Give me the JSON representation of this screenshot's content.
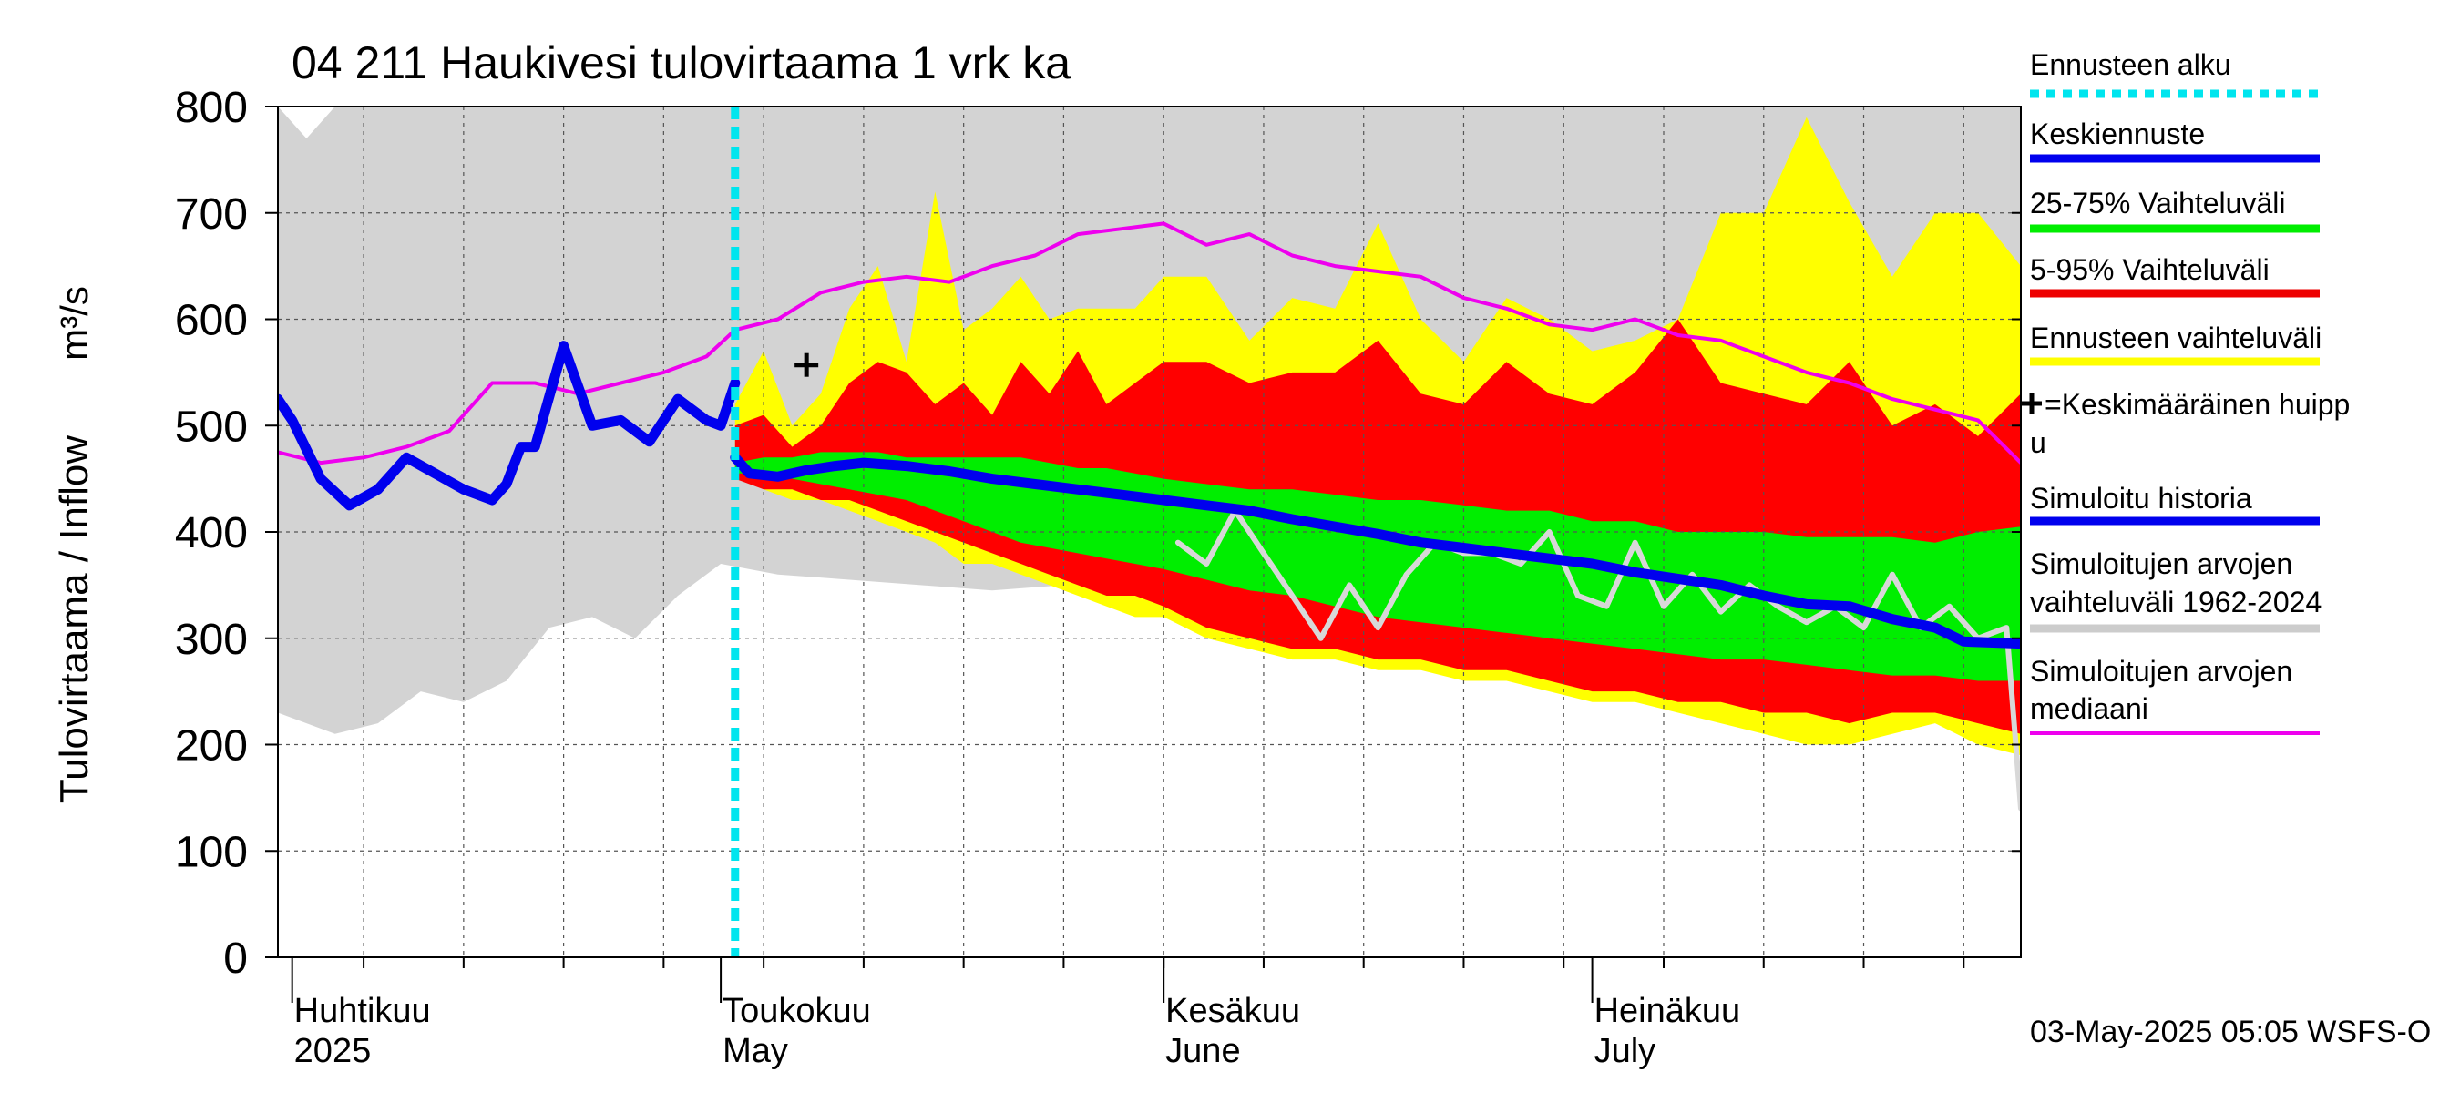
{
  "title": "04 211 Haukivesi tulovirtaama 1 vrk ka",
  "y_axis_label_left": "Tulovirtaama / Inflow",
  "y_axis_unit": "m³/s",
  "month_labels": [
    {
      "fi": "Huhtikuu",
      "en": "2025",
      "date": "2025-04-01"
    },
    {
      "fi": "Toukokuu",
      "en": "May",
      "date": "2025-05-01"
    },
    {
      "fi": "Kesäkuu",
      "en": "June",
      "date": "2025-06-01"
    },
    {
      "fi": "Heinäkuu",
      "en": "July",
      "date": "2025-07-01"
    }
  ],
  "timestamp": "03-May-2025 05:05 WSFS-O",
  "legend": [
    {
      "label": "Ennusteen alku",
      "color": "#00e5ee",
      "style": "dotted"
    },
    {
      "label": "Keskiennuste",
      "color": "#0000ee",
      "style": "line"
    },
    {
      "label": "25-75% Vaihteluväli",
      "color": "#00ee00",
      "style": "line"
    },
    {
      "label": "5-95% Vaihteluväli",
      "color": "#ee0000",
      "style": "line"
    },
    {
      "label": "Ennusteen vaihteluväli",
      "color": "#ffff00",
      "style": "line"
    },
    {
      "label": "✚=Keskimääräinen huipp",
      "label2": "u",
      "color": "#000000",
      "style": "none"
    },
    {
      "label": "Simuloitu historia",
      "color": "#0000ee",
      "style": "line"
    },
    {
      "label": "Simuloitujen arvojen",
      "label2": "vaihteluväli 1962-2024",
      "color": "#cccccc",
      "style": "line"
    },
    {
      "label": "Simuloitujen arvojen",
      "label2": "mediaani",
      "color": "#ee00ee",
      "style": "thin"
    }
  ],
  "chart_data": {
    "type": "line",
    "title": "04 211 Haukivesi tulovirtaama 1 vrk ka",
    "ylabel": "Tulovirtaama / Inflow m³/s",
    "ylim": [
      0,
      800
    ],
    "yticks": [
      0,
      100,
      200,
      300,
      400,
      500,
      600,
      700,
      800
    ],
    "xlim": [
      "2025-03-31",
      "2025-07-31"
    ],
    "x_major_ticks": [
      "2025-04-01",
      "2025-05-01",
      "2025-06-01",
      "2025-07-01"
    ],
    "forecast_start": "2025-05-02",
    "mean_peak": {
      "date": "2025-05-07",
      "value": 557
    },
    "grid": true,
    "colors": {
      "history_range": "#d3d3d3",
      "forecast_range": "#ffff00",
      "p5_95": "#ff0000",
      "p25_75": "#00ee00",
      "mean_forecast": "#0000ee",
      "simulated_history": "#0000ee",
      "median": "#ee00ee",
      "gray_line": "#d8d8d8",
      "forecast_start": "#00e5ee"
    },
    "series": [
      {
        "name": "Simuloitujen arvojen vaihteluväli 1962-2024",
        "kind": "band",
        "dates": [
          "2025-03-31",
          "2025-04-02",
          "2025-04-04",
          "2025-04-07",
          "2025-04-10",
          "2025-04-13",
          "2025-04-16",
          "2025-04-19",
          "2025-04-22",
          "2025-04-25",
          "2025-04-28",
          "2025-05-01",
          "2025-05-05",
          "2025-05-10",
          "2025-05-15",
          "2025-05-20",
          "2025-05-25",
          "2025-05-31",
          "2025-06-05",
          "2025-06-10",
          "2025-06-15",
          "2025-06-20",
          "2025-06-25",
          "2025-06-30",
          "2025-07-05",
          "2025-07-10",
          "2025-07-15",
          "2025-07-20",
          "2025-07-25",
          "2025-07-31"
        ],
        "upper": [
          800,
          770,
          800,
          800,
          800,
          800,
          800,
          800,
          800,
          800,
          800,
          800,
          800,
          800,
          800,
          800,
          800,
          800,
          800,
          800,
          800,
          800,
          800,
          800,
          800,
          800,
          800,
          800,
          800,
          800
        ],
        "lower": [
          230,
          220,
          210,
          220,
          250,
          240,
          260,
          310,
          320,
          300,
          340,
          370,
          360,
          355,
          350,
          345,
          350,
          340,
          330,
          320,
          310,
          300,
          290,
          280,
          270,
          260,
          250,
          240,
          225,
          210
        ]
      },
      {
        "name": "Ennusteen vaihteluväli",
        "kind": "band",
        "dates": [
          "2025-05-02",
          "2025-05-04",
          "2025-05-06",
          "2025-05-08",
          "2025-05-10",
          "2025-05-12",
          "2025-05-14",
          "2025-05-16",
          "2025-05-18",
          "2025-05-20",
          "2025-05-22",
          "2025-05-24",
          "2025-05-26",
          "2025-05-28",
          "2025-05-30",
          "2025-06-01",
          "2025-06-04",
          "2025-06-07",
          "2025-06-10",
          "2025-06-13",
          "2025-06-16",
          "2025-06-19",
          "2025-06-22",
          "2025-06-25",
          "2025-06-28",
          "2025-07-01",
          "2025-07-04",
          "2025-07-07",
          "2025-07-10",
          "2025-07-13",
          "2025-07-16",
          "2025-07-19",
          "2025-07-22",
          "2025-07-25",
          "2025-07-28",
          "2025-07-31"
        ],
        "upper": [
          520,
          570,
          500,
          530,
          610,
          650,
          560,
          720,
          590,
          610,
          640,
          600,
          610,
          610,
          610,
          640,
          640,
          580,
          620,
          610,
          690,
          600,
          560,
          620,
          600,
          570,
          580,
          600,
          700,
          700,
          790,
          710,
          640,
          700,
          700,
          650
        ],
        "lower": [
          460,
          440,
          430,
          430,
          420,
          410,
          400,
          390,
          370,
          370,
          360,
          350,
          340,
          330,
          320,
          320,
          300,
          290,
          280,
          280,
          270,
          270,
          260,
          260,
          250,
          240,
          240,
          230,
          220,
          210,
          200,
          200,
          210,
          220,
          200,
          190
        ]
      },
      {
        "name": "5-95% Vaihteluväli",
        "kind": "band",
        "dates": [
          "2025-05-02",
          "2025-05-04",
          "2025-05-06",
          "2025-05-08",
          "2025-05-10",
          "2025-05-12",
          "2025-05-14",
          "2025-05-16",
          "2025-05-18",
          "2025-05-20",
          "2025-05-22",
          "2025-05-24",
          "2025-05-26",
          "2025-05-28",
          "2025-05-30",
          "2025-06-01",
          "2025-06-04",
          "2025-06-07",
          "2025-06-10",
          "2025-06-13",
          "2025-06-16",
          "2025-06-19",
          "2025-06-22",
          "2025-06-25",
          "2025-06-28",
          "2025-07-01",
          "2025-07-04",
          "2025-07-07",
          "2025-07-10",
          "2025-07-13",
          "2025-07-16",
          "2025-07-19",
          "2025-07-22",
          "2025-07-25",
          "2025-07-28",
          "2025-07-31"
        ],
        "upper": [
          500,
          510,
          480,
          500,
          540,
          560,
          550,
          520,
          540,
          510,
          560,
          530,
          570,
          520,
          540,
          560,
          560,
          540,
          550,
          550,
          580,
          530,
          520,
          560,
          530,
          520,
          550,
          600,
          540,
          530,
          520,
          560,
          500,
          520,
          490,
          530
        ],
        "lower": [
          450,
          440,
          440,
          430,
          430,
          420,
          410,
          400,
          390,
          380,
          370,
          360,
          350,
          340,
          340,
          330,
          310,
          300,
          290,
          290,
          280,
          280,
          270,
          270,
          260,
          250,
          250,
          240,
          240,
          230,
          230,
          220,
          230,
          230,
          220,
          210
        ]
      },
      {
        "name": "25-75% Vaihteluväli",
        "kind": "band",
        "dates": [
          "2025-05-02",
          "2025-05-04",
          "2025-05-06",
          "2025-05-08",
          "2025-05-10",
          "2025-05-12",
          "2025-05-14",
          "2025-05-16",
          "2025-05-18",
          "2025-05-20",
          "2025-05-22",
          "2025-05-24",
          "2025-05-26",
          "2025-05-28",
          "2025-05-30",
          "2025-06-01",
          "2025-06-04",
          "2025-06-07",
          "2025-06-10",
          "2025-06-13",
          "2025-06-16",
          "2025-06-19",
          "2025-06-22",
          "2025-06-25",
          "2025-06-28",
          "2025-07-01",
          "2025-07-04",
          "2025-07-07",
          "2025-07-10",
          "2025-07-13",
          "2025-07-16",
          "2025-07-19",
          "2025-07-22",
          "2025-07-25",
          "2025-07-28",
          "2025-07-31"
        ],
        "upper": [
          465,
          470,
          470,
          475,
          475,
          475,
          470,
          470,
          470,
          470,
          470,
          465,
          460,
          460,
          455,
          450,
          445,
          440,
          440,
          435,
          430,
          430,
          425,
          420,
          420,
          410,
          410,
          400,
          400,
          400,
          395,
          395,
          395,
          390,
          400,
          405
        ],
        "lower": [
          455,
          455,
          450,
          445,
          440,
          435,
          430,
          420,
          410,
          400,
          390,
          385,
          380,
          375,
          370,
          365,
          355,
          345,
          340,
          330,
          320,
          315,
          310,
          305,
          300,
          295,
          290,
          285,
          280,
          280,
          275,
          270,
          265,
          265,
          260,
          260
        ]
      },
      {
        "name": "Simuloitujen arvojen mediaani",
        "kind": "line",
        "dates": [
          "2025-03-31",
          "2025-04-03",
          "2025-04-06",
          "2025-04-09",
          "2025-04-12",
          "2025-04-15",
          "2025-04-18",
          "2025-04-21",
          "2025-04-24",
          "2025-04-27",
          "2025-04-30",
          "2025-05-02",
          "2025-05-05",
          "2025-05-08",
          "2025-05-11",
          "2025-05-14",
          "2025-05-17",
          "2025-05-20",
          "2025-05-23",
          "2025-05-26",
          "2025-05-29",
          "2025-06-01",
          "2025-06-04",
          "2025-06-07",
          "2025-06-10",
          "2025-06-13",
          "2025-06-16",
          "2025-06-19",
          "2025-06-22",
          "2025-06-25",
          "2025-06-28",
          "2025-07-01",
          "2025-07-04",
          "2025-07-07",
          "2025-07-10",
          "2025-07-13",
          "2025-07-16",
          "2025-07-19",
          "2025-07-22",
          "2025-07-25",
          "2025-07-28",
          "2025-07-31"
        ],
        "values": [
          475,
          465,
          470,
          480,
          495,
          540,
          540,
          530,
          540,
          550,
          565,
          590,
          600,
          625,
          635,
          640,
          635,
          650,
          660,
          680,
          685,
          690,
          670,
          680,
          660,
          650,
          645,
          640,
          620,
          610,
          595,
          590,
          600,
          585,
          580,
          565,
          550,
          540,
          525,
          515,
          505,
          465
        ]
      },
      {
        "name": "Simuloitu historia",
        "kind": "line",
        "dates": [
          "2025-03-31",
          "2025-04-01",
          "2025-04-03",
          "2025-04-05",
          "2025-04-07",
          "2025-04-09",
          "2025-04-11",
          "2025-04-13",
          "2025-04-15",
          "2025-04-16",
          "2025-04-17",
          "2025-04-18",
          "2025-04-20",
          "2025-04-22",
          "2025-04-24",
          "2025-04-26",
          "2025-04-28",
          "2025-04-30",
          "2025-05-01",
          "2025-05-02"
        ],
        "values": [
          525,
          505,
          450,
          425,
          440,
          470,
          455,
          440,
          430,
          445,
          480,
          480,
          575,
          500,
          505,
          485,
          525,
          505,
          500,
          540
        ]
      },
      {
        "name": "Keskiennuste",
        "kind": "line",
        "dates": [
          "2025-05-02",
          "2025-05-03",
          "2025-05-05",
          "2025-05-07",
          "2025-05-09",
          "2025-05-11",
          "2025-05-14",
          "2025-05-17",
          "2025-05-20",
          "2025-05-23",
          "2025-05-26",
          "2025-05-29",
          "2025-06-01",
          "2025-06-04",
          "2025-06-07",
          "2025-06-10",
          "2025-06-13",
          "2025-06-16",
          "2025-06-19",
          "2025-06-22",
          "2025-06-25",
          "2025-06-28",
          "2025-07-01",
          "2025-07-04",
          "2025-07-07",
          "2025-07-10",
          "2025-07-13",
          "2025-07-16",
          "2025-07-19",
          "2025-07-22",
          "2025-07-25",
          "2025-07-27",
          "2025-07-31"
        ],
        "values": [
          470,
          455,
          452,
          458,
          462,
          465,
          462,
          457,
          450,
          445,
          440,
          435,
          430,
          425,
          420,
          412,
          405,
          398,
          390,
          385,
          380,
          375,
          370,
          362,
          356,
          350,
          340,
          332,
          330,
          318,
          310,
          297,
          295
        ]
      },
      {
        "name": "gray",
        "kind": "line",
        "dates": [
          "2025-06-02",
          "2025-06-04",
          "2025-06-06",
          "2025-06-08",
          "2025-06-10",
          "2025-06-12",
          "2025-06-14",
          "2025-06-16",
          "2025-06-18",
          "2025-06-20",
          "2025-06-22",
          "2025-06-24",
          "2025-06-26",
          "2025-06-28",
          "2025-06-30",
          "2025-07-02",
          "2025-07-04",
          "2025-07-06",
          "2025-07-08",
          "2025-07-10",
          "2025-07-12",
          "2025-07-14",
          "2025-07-16",
          "2025-07-18",
          "2025-07-20",
          "2025-07-22",
          "2025-07-24",
          "2025-07-26",
          "2025-07-28",
          "2025-07-30",
          "2025-07-31"
        ],
        "values": [
          390,
          370,
          420,
          380,
          340,
          300,
          350,
          310,
          360,
          390,
          380,
          380,
          370,
          400,
          340,
          330,
          390,
          330,
          360,
          325,
          350,
          330,
          315,
          330,
          310,
          360,
          310,
          330,
          300,
          310,
          140
        ]
      }
    ]
  }
}
